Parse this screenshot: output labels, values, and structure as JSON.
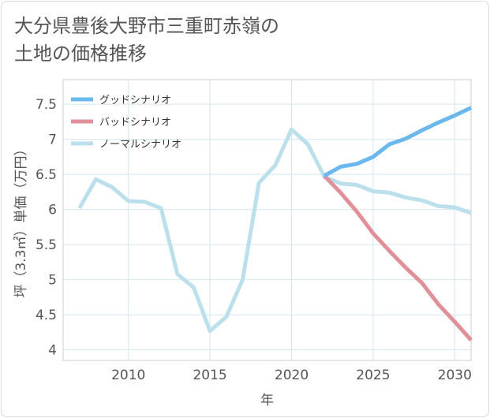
{
  "title_lines": [
    "大分県豊後大野市三重町赤嶺の",
    "土地の価格推移"
  ],
  "chart_data": {
    "type": "line",
    "xlabel": "年",
    "ylabel": "坪（3.3㎡）単価（万円）",
    "xlim": [
      2006,
      2031
    ],
    "ylim": [
      3.85,
      7.85
    ],
    "xticks": [
      2010,
      2015,
      2020,
      2025,
      2030
    ],
    "yticks": [
      4,
      4.5,
      5,
      5.5,
      6,
      6.5,
      7,
      7.5
    ],
    "ytick_labels": [
      "4",
      "4.5",
      "5",
      "5.5",
      "6",
      "6.5",
      "7",
      "7.5"
    ],
    "grid": true,
    "legend_position": "top-left",
    "series": [
      {
        "name": "グッドシナリオ",
        "color": "#6ab8ee",
        "x": [
          2022,
          2023,
          2024,
          2025,
          2026,
          2027,
          2028,
          2029,
          2030,
          2031
        ],
        "y": [
          6.48,
          6.61,
          6.65,
          6.75,
          6.93,
          7.01,
          7.13,
          7.24,
          7.34,
          7.45
        ]
      },
      {
        "name": "バッドシナリオ",
        "color": "#e09099",
        "x": [
          2022,
          2023,
          2024,
          2025,
          2026,
          2027,
          2028,
          2029,
          2030,
          2031
        ],
        "y": [
          6.48,
          6.24,
          5.97,
          5.66,
          5.41,
          5.17,
          4.95,
          4.65,
          4.4,
          4.14
        ]
      },
      {
        "name": "ノーマルシナリオ",
        "color": "#bcdfec",
        "x": [
          2007,
          2008,
          2009,
          2010,
          2011,
          2012,
          2013,
          2014,
          2015,
          2016,
          2017,
          2018,
          2019,
          2020,
          2021,
          2022,
          2023,
          2024,
          2025,
          2026,
          2027,
          2028,
          2029,
          2030,
          2031
        ],
        "y": [
          6.02,
          6.43,
          6.32,
          6.12,
          6.11,
          6.02,
          5.08,
          4.89,
          4.27,
          4.47,
          5.0,
          6.38,
          6.63,
          7.14,
          6.93,
          6.47,
          6.37,
          6.35,
          6.26,
          6.24,
          6.17,
          6.13,
          6.05,
          6.03,
          5.95
        ]
      }
    ]
  }
}
